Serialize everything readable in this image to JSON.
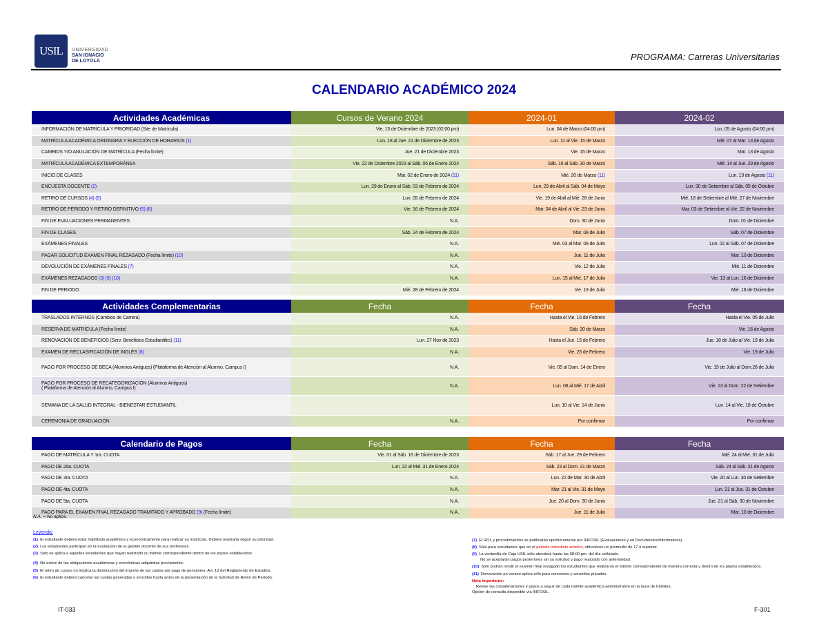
{
  "header": {
    "logo_text": "USIL",
    "university": [
      "UNIVERSIDAD",
      "SAN IGNACIO",
      "DE LOYOLA"
    ],
    "program": "PROGRAMA: Carreras Universitarias",
    "title": "CALENDARIO ACADÉMICO 2024"
  },
  "colors": {
    "navy": "#00008b",
    "green": "#76923c",
    "orange": "#e36c09",
    "purple": "#604a7b",
    "footnote_ref": "#1a1aff"
  },
  "tables": [
    {
      "headers": [
        "Actividades Académicas",
        "Cursos de Verano 2024",
        "2024-01",
        "2024-02"
      ],
      "rows": [
        {
          "label": "INFORMACIÓN DE MATRÍCULA Y PRIORIDAD (Site de Matrícula)",
          "refs": "",
          "cells": [
            "Vie. 15 de Diciembre de 2023 (02:00 pm)",
            "Lun. 04 de Marzo (04:00 pm)",
            "Lun. 05 de Agosto (04:00 pm)"
          ]
        },
        {
          "label": "MATRÍCULA ACADÉMICA ORDINARIA Y ELECCIÓN DE HORARIOS",
          "refs": "(1)",
          "cells": [
            "Lun. 18 al Jue. 21 de Diciembre de 2023",
            "Lun. 11 al Vie. 15 de Marzo",
            "Mié. 07 al Mar. 13 de Agosto"
          ]
        },
        {
          "label": "CAMBIOS Y/O ANULACIÓN DE MATRÍCULA (Fecha límite)",
          "refs": "",
          "cells": [
            "Jue. 21 de Diciembre 2023",
            "Vie. 15 de Marzo",
            "Mar. 13 de Agosto"
          ]
        },
        {
          "label": "MATRÍCULA ACADÉMICA EXTEMPORÁNEA",
          "refs": "",
          "cells": [
            "Vie. 22 de Diciembre 2023 al Sáb. 06 de Enero 2024",
            "Sáb. 16 al Sáb. 30 de Marzo",
            "Mié. 14 al Jue. 29 de Agosto"
          ]
        },
        {
          "label": "INICIO DE CLASES",
          "refs": "",
          "cells": [
            "Mar. 02 de Enero de 2024 (11)",
            "Mié. 20 de Marzo (11)",
            "Lun. 19 de Agosto (11)"
          ]
        },
        {
          "label": "ENCUESTA DOCENTE",
          "refs": "(2)",
          "cells": [
            "Lun. 29 de Enero al Sáb. 03 de Febrero de 2024",
            "Lun. 29 de Abril al Sáb. 04 de Mayo",
            "Lun. 30 de Setiembre al Sáb. 05 de Octubre"
          ]
        },
        {
          "label": "RETIRO DE CURSOS",
          "refs": "(4) (5)",
          "cells": [
            "Lun. 05 de Febrero de 2024",
            "Vie. 19 de Abril al Mié. 28 de Junio",
            "Mié. 18 de Setiembre al Mié. 27 de Noviembre"
          ]
        },
        {
          "label": "RETIRO DE PERIODO Y RETIRO DEFINITIVO",
          "refs": "(5) (6)",
          "cells": [
            "Vie. 16 de Febrero de 2024",
            "Mar. 04 de Abril al Vie. 23 de Junio",
            "Mar. 03 de Setiembre al Vie. 22 de Noviembre"
          ]
        },
        {
          "label": "FIN DE EVALUACIONES PERMANENTES",
          "refs": "",
          "cells": [
            "N.A.",
            "Dom. 30 de Junio",
            "Dom. 01 de Diciembre"
          ]
        },
        {
          "label": "FIN DE CLASES",
          "refs": "",
          "cells": [
            "Sáb. 24 de Febrero de 2024",
            "Mar. 09 de Julio",
            "Sáb. 07 de Diciembre"
          ]
        },
        {
          "label": "EXÁMENES FINALES",
          "refs": "",
          "cells": [
            "N.A.",
            "Mié. 03 al Mar. 09 de Julio",
            "Lun. 02 al Sáb. 07 de Diciembre"
          ]
        },
        {
          "label": "PAGAR SOLICITUD EXAMEN FINAL REZAGADO (Fecha límite)",
          "refs": "(10)",
          "cells": [
            "N.A.",
            "Jue. 11 de Julio",
            "Mar. 10 de Diciembre"
          ]
        },
        {
          "label": "DEVOLUCIÓN DE EXÁMENES FINALES",
          "refs": "(7)",
          "cells": [
            "N.A.",
            "Vie. 12 de Julio",
            "Mié. 11 de Diciembre"
          ]
        },
        {
          "label": "EXÁMENES REZAGADOS",
          "refs": "(3) (9) (10)",
          "cells": [
            "N.A.",
            "Lun. 15 al Mié. 17 de Julio",
            "Vie. 13 al Lun. 16 de Diciembre"
          ]
        },
        {
          "label": "FIN DE PERIODO",
          "refs": "",
          "cells": [
            "Mié. 28 de Febrero de 2024",
            "Vie. 19 de Julio",
            "Mié. 18 de Diciembre"
          ]
        }
      ]
    },
    {
      "headers": [
        "Actividades Complementarias",
        "Fecha",
        "Fecha",
        "Fecha"
      ],
      "rows": [
        {
          "label": "TRASLADOS INTERNOS (Cambios de Carrera)",
          "refs": "",
          "cells": [
            "N.A.",
            "Hasta el Vie. 16 de Febrero",
            "Hasta el Vie. 05 de Julio"
          ]
        },
        {
          "label": "RESERVA DE MATRÍCULA (Fecha límite)",
          "refs": "",
          "cells": [
            "N.A.",
            "Sáb. 30 de Marzo",
            "Vie. 16 de Agosto"
          ]
        },
        {
          "label": "RENOVACIÓN DE BENEFICIOS (Serv. Beneficios Estudiantiles)",
          "refs": "(11)",
          "cells": [
            "Lun. 27 Nov de 2023",
            "Hasta el Jue. 15 de Febrero",
            "Jue. 18 de Julio al Vie. 19 de Julio"
          ]
        },
        {
          "label": "EXAMEN DE RECLASIFICACIÓN DE INGLÉS",
          "refs": "(8)",
          "cells": [
            "N.A.",
            "Vie. 23 de Febrero",
            "Vie. 19 de Julio"
          ]
        },
        {
          "label": "PAGO POR PROCESO DE BECA (Alumnos Antiguos) (Plataforma de Atención al Alumno, Campus I)",
          "refs": "",
          "tall": true,
          "cells": [
            "N.A.",
            "Vie. 05 al Dom. 14 de Enero",
            "Vie. 19 de Julio al Dom.28 de Julio"
          ]
        },
        {
          "label": "PAGO POR PROCESO DE RECATEGORIZACIÓN (Alumnos Antiguos)",
          "label2": "( Plataforma de Atención al Alumno, Campus I)",
          "refs": "",
          "tall": true,
          "lav": true,
          "cells": [
            "N.A.",
            "Lun. 08 al Mié. 17 de Abril",
            "Vie. 13 al Dom. 22 de Setiembre"
          ]
        },
        {
          "label": "SEMANA DE LA SALUD INTEGRAL - BIENESTAR ESTUDIANTIL",
          "refs": "",
          "tall": true,
          "cells": [
            "",
            "Lun. 10 al Vie. 14 de Junio",
            "Lun. 14 al Vie. 18 de Octubre"
          ]
        },
        {
          "label": "CEREMONIA DE GRADUACIÓN",
          "refs": "",
          "cells": [
            "N.A.",
            "Por confirmar",
            "Por confirmar"
          ]
        }
      ]
    },
    {
      "headers": [
        "Calendario de Pagos",
        "Fecha",
        "Fecha",
        "Fecha"
      ],
      "rows": [
        {
          "label": "PAGO DE MATRÍCULA Y 1ra. CUOTA",
          "refs": "",
          "cells": [
            "Vie. 01 al Sáb. 16 de Diciembre de 2023",
            "Sáb. 17 al Jue. 29 de Febrero",
            "Mié. 24 al Mié. 31 de Julio"
          ]
        },
        {
          "label": "PAGO DE 2da. CUOTA",
          "refs": "",
          "cells": [
            "Lun. 22 al Mié. 31 de Enero 2024",
            "Sáb. 23 al Dom. 31 de Marzo",
            "Sáb. 24 al Sáb. 31 de Agosto"
          ]
        },
        {
          "label": "PAGO DE 3ra. CUOTA",
          "refs": "",
          "cells": [
            "N.A.",
            "Lun. 22 de Mar. 30 de Abril",
            "Vie. 20 al Lun. 30 de Setiembre"
          ]
        },
        {
          "label": "PAGO DE 4ta. CUOTA",
          "refs": "",
          "cells": [
            "N.A.",
            "Mar. 21 al Vie. 31 de Mayo",
            "Lun. 21 al Jue. 31 de Octubre"
          ]
        },
        {
          "label": "PAGO DE 5ta. CUOTA",
          "refs": "",
          "cells": [
            "N.A.",
            "Jue. 20 al Dom. 30 de Junio",
            "Jue. 21 al Sáb. 30 de Noviembre"
          ]
        },
        {
          "label": "PAGO PARA EL EXAMEN FINAL REZAGADO TRAMITADO Y APROBADO",
          "refs": "(9)",
          "suffix": "(Fecha límite)",
          "cells": [
            "N.A.",
            "Jue. 11 de Julio",
            "Mar. 10 de Diciembre"
          ]
        }
      ]
    }
  ],
  "na_note": "N.A. = No aplica.",
  "legend": {
    "title": "Leyenda:",
    "left": [
      {
        "n": "(1)",
        "text": "El estudiante deberá estar habilitado académica y económicamente para realizar su matrícula. Deberá realizarla según su prioridad."
      },
      {
        "n": "(2)",
        "text": "Los estudiantes participan en la evaluación de la gestión docente de sus profesores."
      },
      {
        "n": "(3)",
        "text": "Sólo se aplica a aquellos estudiantes que hayan realizado su trámite correspondiente dentro de los plazos establecidos."
      },
      {
        "n": "(4)",
        "text": "No exime de las obligaciones académicas y económicas adquiridas previamente."
      },
      {
        "n": "(5)",
        "text": "El retiro de cursos no implica la disminución del importe de las cuotas por pago de pensiones. Art. 13 del Reglamento de Estudios."
      },
      {
        "n": "(6)",
        "text": "El estudiante deberá cancelar las cuotas generadas y vencidas hasta antes de la presentación de la Solicitud de Retiro de Período."
      }
    ],
    "right": [
      {
        "n": "(7)",
        "text": "El ROL y procedimientos se publicarán oportunamente por INFOSIL (Evaluaciones y en Documentos/Informativos)."
      },
      {
        "n": "(8)",
        "text_a": "Sólo para estudiantes que en el ",
        "text_red": "periodo inmediato anterior",
        "text_b": ", obtuvieron un promedio de 17 o superior."
      },
      {
        "n": "(9)",
        "text": "La ventanilla de Caja USIL sólo atenderá hasta las 08:00 pm. del día señalado.",
        "text2": "No se aceptarán pagos posteriores sin su solicitud y pago realizado con anterioridad."
      },
      {
        "n": "(10)",
        "text": "Sólo podrán rendir el examen final rezagado los estudiantes que realizaron el trámite correspondiente de manera correcta y dentro de los plazos establecidos."
      },
      {
        "n": "(11)",
        "text": "Renovación en verano aplica sólo para convenios y acuerdos privados."
      }
    ],
    "note_title": "Nota importante:",
    "note_lines": [
      "Revise las consideraciones y pasos a seguir de cada trámite académico-administrativo en la Guía de trámites,",
      "Opción de consulta disponible vía INFOSIL."
    ]
  },
  "footer": {
    "left": "IT-033",
    "right": "F-301"
  }
}
